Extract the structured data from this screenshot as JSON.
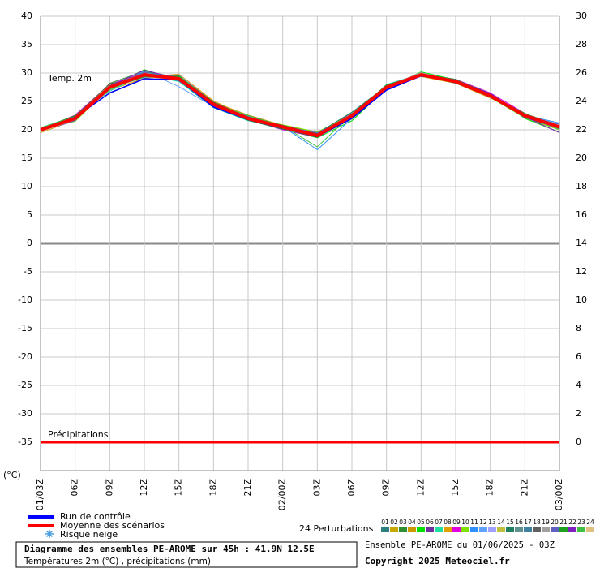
{
  "chart_data": {
    "type": "line",
    "title": "Diagramme des ensembles PE-AROME sur 45h : 41.9N 12.5E",
    "subtitle": "Températures 2m (°C) , précipitations (mm)",
    "run_info": "Ensemble PE-AROME du 01/06/2025 - 03Z",
    "copyright": "Copyright 2025 Meteociel.fr",
    "y_label": "(°C)",
    "temp_label": "Temp. 2m",
    "snow_legend": "Risque neige",
    "perturbations_label": "24 Perturbations",
    "categories": [
      "01/03Z",
      "06Z",
      "09Z",
      "12Z",
      "15Z",
      "18Z",
      "21Z",
      "02/00Z",
      "03Z",
      "06Z",
      "09Z",
      "12Z",
      "15Z",
      "18Z",
      "21Z",
      "03/00Z"
    ],
    "ylim": [
      -40,
      40
    ],
    "yticks": [
      -35,
      -30,
      -25,
      -20,
      -15,
      -10,
      -5,
      0,
      5,
      10,
      15,
      20,
      25,
      30,
      35,
      40
    ],
    "y2lim": [
      -2,
      30
    ],
    "y2ticks": [
      0,
      2,
      4,
      6,
      8,
      10,
      12,
      14,
      16,
      18,
      20,
      22,
      24,
      26,
      28,
      30
    ],
    "grid": true,
    "series": [
      {
        "name": "Run de contrôle",
        "color": "#0000ff",
        "values": [
          20.0,
          22.2,
          26.5,
          29.0,
          28.8,
          24.0,
          21.8,
          20.3,
          18.8,
          22.0,
          27.0,
          29.5,
          28.6,
          25.8,
          22.3,
          20.6
        ]
      },
      {
        "name": "Moyenne des scénarios",
        "color": "#ff0000",
        "values": [
          20.0,
          22.0,
          27.5,
          29.7,
          29.0,
          24.5,
          22.0,
          20.5,
          19.0,
          22.5,
          27.5,
          29.7,
          28.5,
          26.0,
          22.5,
          20.5
        ]
      },
      {
        "name": "01",
        "color": "#2f7f7f",
        "values": [
          20.2,
          21.8,
          27.9,
          29.9,
          29.3,
          24.8,
          22.3,
          20.6,
          19.2,
          22.8,
          27.4,
          29.8,
          28.7,
          26.2,
          22.4,
          20.3
        ]
      },
      {
        "name": "02",
        "color": "#c8a800",
        "values": [
          19.8,
          22.3,
          27.2,
          29.4,
          28.8,
          24.2,
          21.8,
          20.4,
          18.8,
          22.2,
          27.7,
          29.6,
          28.4,
          25.8,
          22.6,
          20.7
        ]
      },
      {
        "name": "03",
        "color": "#2f8f2f",
        "values": [
          20.1,
          21.6,
          28.2,
          30.3,
          29.2,
          24.6,
          22.1,
          20.2,
          19.3,
          22.9,
          27.2,
          29.9,
          28.9,
          26.3,
          22.2,
          20.1
        ]
      },
      {
        "name": "04",
        "color": "#c89a00",
        "values": [
          19.6,
          22.5,
          27.0,
          29.1,
          29.6,
          24.9,
          22.6,
          20.8,
          19.5,
          22.4,
          27.9,
          29.4,
          28.2,
          25.6,
          22.8,
          20.9
        ]
      },
      {
        "name": "05",
        "color": "#00e000",
        "values": [
          20.3,
          22.1,
          27.6,
          30.6,
          28.7,
          24.0,
          21.7,
          20.1,
          18.6,
          21.6,
          27.3,
          30.2,
          28.8,
          26.4,
          22.0,
          19.6
        ]
      },
      {
        "name": "06",
        "color": "#7030a0",
        "values": [
          19.9,
          21.9,
          27.8,
          29.6,
          29.5,
          24.7,
          22.4,
          20.7,
          19.1,
          23.0,
          27.6,
          29.5,
          28.5,
          25.9,
          22.7,
          20.6
        ]
      },
      {
        "name": "07",
        "color": "#20e0a0",
        "values": [
          20.4,
          22.4,
          26.8,
          29.8,
          28.5,
          23.9,
          21.6,
          20.3,
          18.9,
          22.1,
          28.0,
          29.8,
          28.3,
          26.1,
          22.3,
          20.2
        ]
      },
      {
        "name": "08",
        "color": "#e0a000",
        "values": [
          19.5,
          21.7,
          27.3,
          29.3,
          29.8,
          25.1,
          22.2,
          20.5,
          19.4,
          22.6,
          27.1,
          29.7,
          28.6,
          26.0,
          22.5,
          20.8
        ]
      },
      {
        "name": "09",
        "color": "#e000e0",
        "values": [
          20.0,
          22.6,
          28.0,
          30.1,
          29.1,
          24.4,
          21.9,
          20.0,
          18.7,
          22.3,
          27.8,
          29.6,
          28.9,
          26.5,
          22.9,
          20.4
        ]
      },
      {
        "name": "10",
        "color": "#80e000",
        "values": [
          20.2,
          21.5,
          27.4,
          29.5,
          28.9,
          24.3,
          22.0,
          20.9,
          19.6,
          22.7,
          27.5,
          30.0,
          28.4,
          25.7,
          22.1,
          20.0
        ]
      },
      {
        "name": "11",
        "color": "#3090ff",
        "values": [
          19.7,
          22.2,
          27.7,
          29.9,
          29.4,
          24.5,
          22.5,
          20.6,
          16.5,
          22.0,
          27.3,
          29.5,
          28.7,
          26.2,
          22.6,
          21.2
        ]
      },
      {
        "name": "12",
        "color": "#60a0ff",
        "values": [
          20.1,
          21.9,
          27.1,
          30.4,
          27.6,
          24.1,
          21.8,
          20.2,
          19.0,
          22.5,
          27.9,
          29.8,
          28.5,
          25.9,
          22.4,
          20.5
        ]
      },
      {
        "name": "13",
        "color": "#a0a0ff",
        "values": [
          19.8,
          22.0,
          27.5,
          29.2,
          29.7,
          24.8,
          22.3,
          20.4,
          19.2,
          22.8,
          27.2,
          29.7,
          28.6,
          26.3,
          22.7,
          20.9
        ]
      },
      {
        "name": "14",
        "color": "#c0c040",
        "values": [
          20.3,
          22.3,
          27.9,
          30.0,
          29.0,
          24.6,
          22.1,
          20.7,
          18.8,
          21.9,
          27.6,
          29.9,
          28.3,
          26.0,
          22.2,
          20.3
        ]
      },
      {
        "name": "15",
        "color": "#208060",
        "values": [
          19.6,
          21.8,
          27.2,
          29.7,
          29.3,
          24.2,
          21.7,
          20.1,
          19.4,
          23.1,
          27.7,
          29.4,
          28.8,
          26.4,
          22.5,
          20.6
        ]
      },
      {
        "name": "16",
        "color": "#609090",
        "values": [
          20.0,
          22.1,
          27.6,
          29.6,
          28.8,
          24.7,
          22.4,
          20.5,
          19.1,
          22.4,
          27.4,
          29.6,
          28.7,
          25.8,
          22.3,
          20.1
        ]
      },
      {
        "name": "17",
        "color": "#4080a0",
        "values": [
          20.4,
          21.7,
          27.3,
          30.2,
          29.2,
          24.4,
          22.0,
          20.3,
          18.9,
          22.6,
          27.8,
          29.8,
          28.2,
          26.1,
          22.8,
          20.7
        ]
      },
      {
        "name": "18",
        "color": "#606060",
        "values": [
          19.9,
          22.4,
          28.1,
          29.4,
          29.5,
          24.9,
          22.2,
          20.8,
          19.3,
          22.2,
          27.3,
          29.7,
          28.9,
          26.2,
          22.1,
          20.4
        ]
      },
      {
        "name": "19",
        "color": "#a0a0a0",
        "values": [
          20.1,
          22.0,
          27.0,
          29.8,
          29.1,
          24.3,
          21.9,
          20.4,
          19.0,
          22.9,
          27.6,
          30.1,
          28.5,
          25.7,
          22.6,
          20.8
        ]
      },
      {
        "name": "20",
        "color": "#6060c0",
        "values": [
          19.7,
          21.6,
          27.8,
          30.0,
          28.6,
          24.5,
          22.3,
          20.6,
          19.5,
          22.3,
          27.5,
          29.5,
          28.4,
          26.3,
          22.4,
          21.0
        ]
      },
      {
        "name": "21",
        "color": "#20a020",
        "values": [
          20.2,
          22.5,
          27.4,
          29.3,
          29.4,
          24.8,
          22.1,
          20.2,
          18.7,
          22.7,
          27.9,
          29.7,
          28.8,
          26.0,
          22.9,
          20.2
        ]
      },
      {
        "name": "22",
        "color": "#8020c0",
        "values": [
          19.8,
          21.9,
          27.7,
          30.5,
          29.0,
          24.2,
          21.8,
          20.5,
          19.2,
          22.1,
          27.2,
          29.8,
          28.6,
          26.4,
          22.3,
          19.5
        ]
      },
      {
        "name": "23",
        "color": "#40c040",
        "values": [
          20.3,
          22.2,
          27.1,
          29.7,
          29.6,
          24.6,
          22.5,
          20.7,
          17.0,
          22.8,
          27.7,
          29.6,
          28.3,
          25.9,
          22.5,
          20.5
        ]
      },
      {
        "name": "24",
        "color": "#e0c080",
        "values": [
          19.6,
          21.8,
          27.5,
          29.5,
          28.9,
          24.0,
          22.0,
          20.3,
          19.1,
          22.5,
          27.4,
          29.9,
          28.7,
          26.1,
          22.7,
          20.6
        ]
      },
      {
        "name": "Précipitations",
        "color": "#ff0000",
        "axis": "y2",
        "values": [
          0,
          0,
          0,
          0,
          0,
          0,
          0,
          0,
          0,
          0,
          0,
          0,
          0,
          0,
          0,
          0
        ]
      }
    ]
  }
}
